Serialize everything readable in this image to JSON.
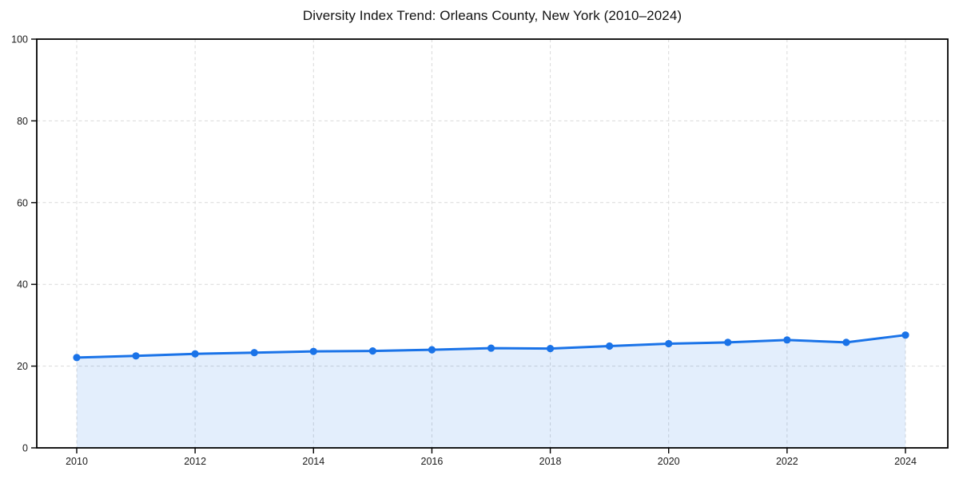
{
  "chart_data": {
    "type": "area",
    "title": "Diversity Index Trend: Orleans County, New York (2010–2024)",
    "xlabel": "",
    "ylabel": "",
    "x": [
      2010,
      2011,
      2012,
      2013,
      2014,
      2015,
      2016,
      2017,
      2018,
      2019,
      2020,
      2021,
      2022,
      2023,
      2024
    ],
    "series": [
      {
        "name": "Diversity Index",
        "values": [
          22.1,
          22.5,
          23.0,
          23.3,
          23.6,
          23.7,
          24.0,
          24.4,
          24.3,
          24.9,
          25.5,
          25.8,
          26.4,
          25.8,
          27.6
        ]
      }
    ],
    "ylim": [
      0,
      100
    ],
    "y_ticks": [
      0,
      20,
      40,
      60,
      80,
      100
    ],
    "y_tick_labels": [
      "0",
      "20",
      "40",
      "60",
      "80",
      "100"
    ],
    "x_ticks": [
      2010,
      2012,
      2014,
      2016,
      2018,
      2020,
      2022,
      2024
    ],
    "x_tick_labels": [
      "2010",
      "2012",
      "2014",
      "2016",
      "2018",
      "2020",
      "2022",
      "2024"
    ],
    "grid": true,
    "grid_style": "dashed",
    "legend": "none",
    "colors": {
      "line": "#1a73e8",
      "marker": "#1a73e8",
      "area_fill": "rgba(26,115,232,0.12)",
      "grid": "#d9d9d9",
      "axis": "#000000",
      "tick_text": "#1a1a1a",
      "background": "#ffffff"
    }
  }
}
